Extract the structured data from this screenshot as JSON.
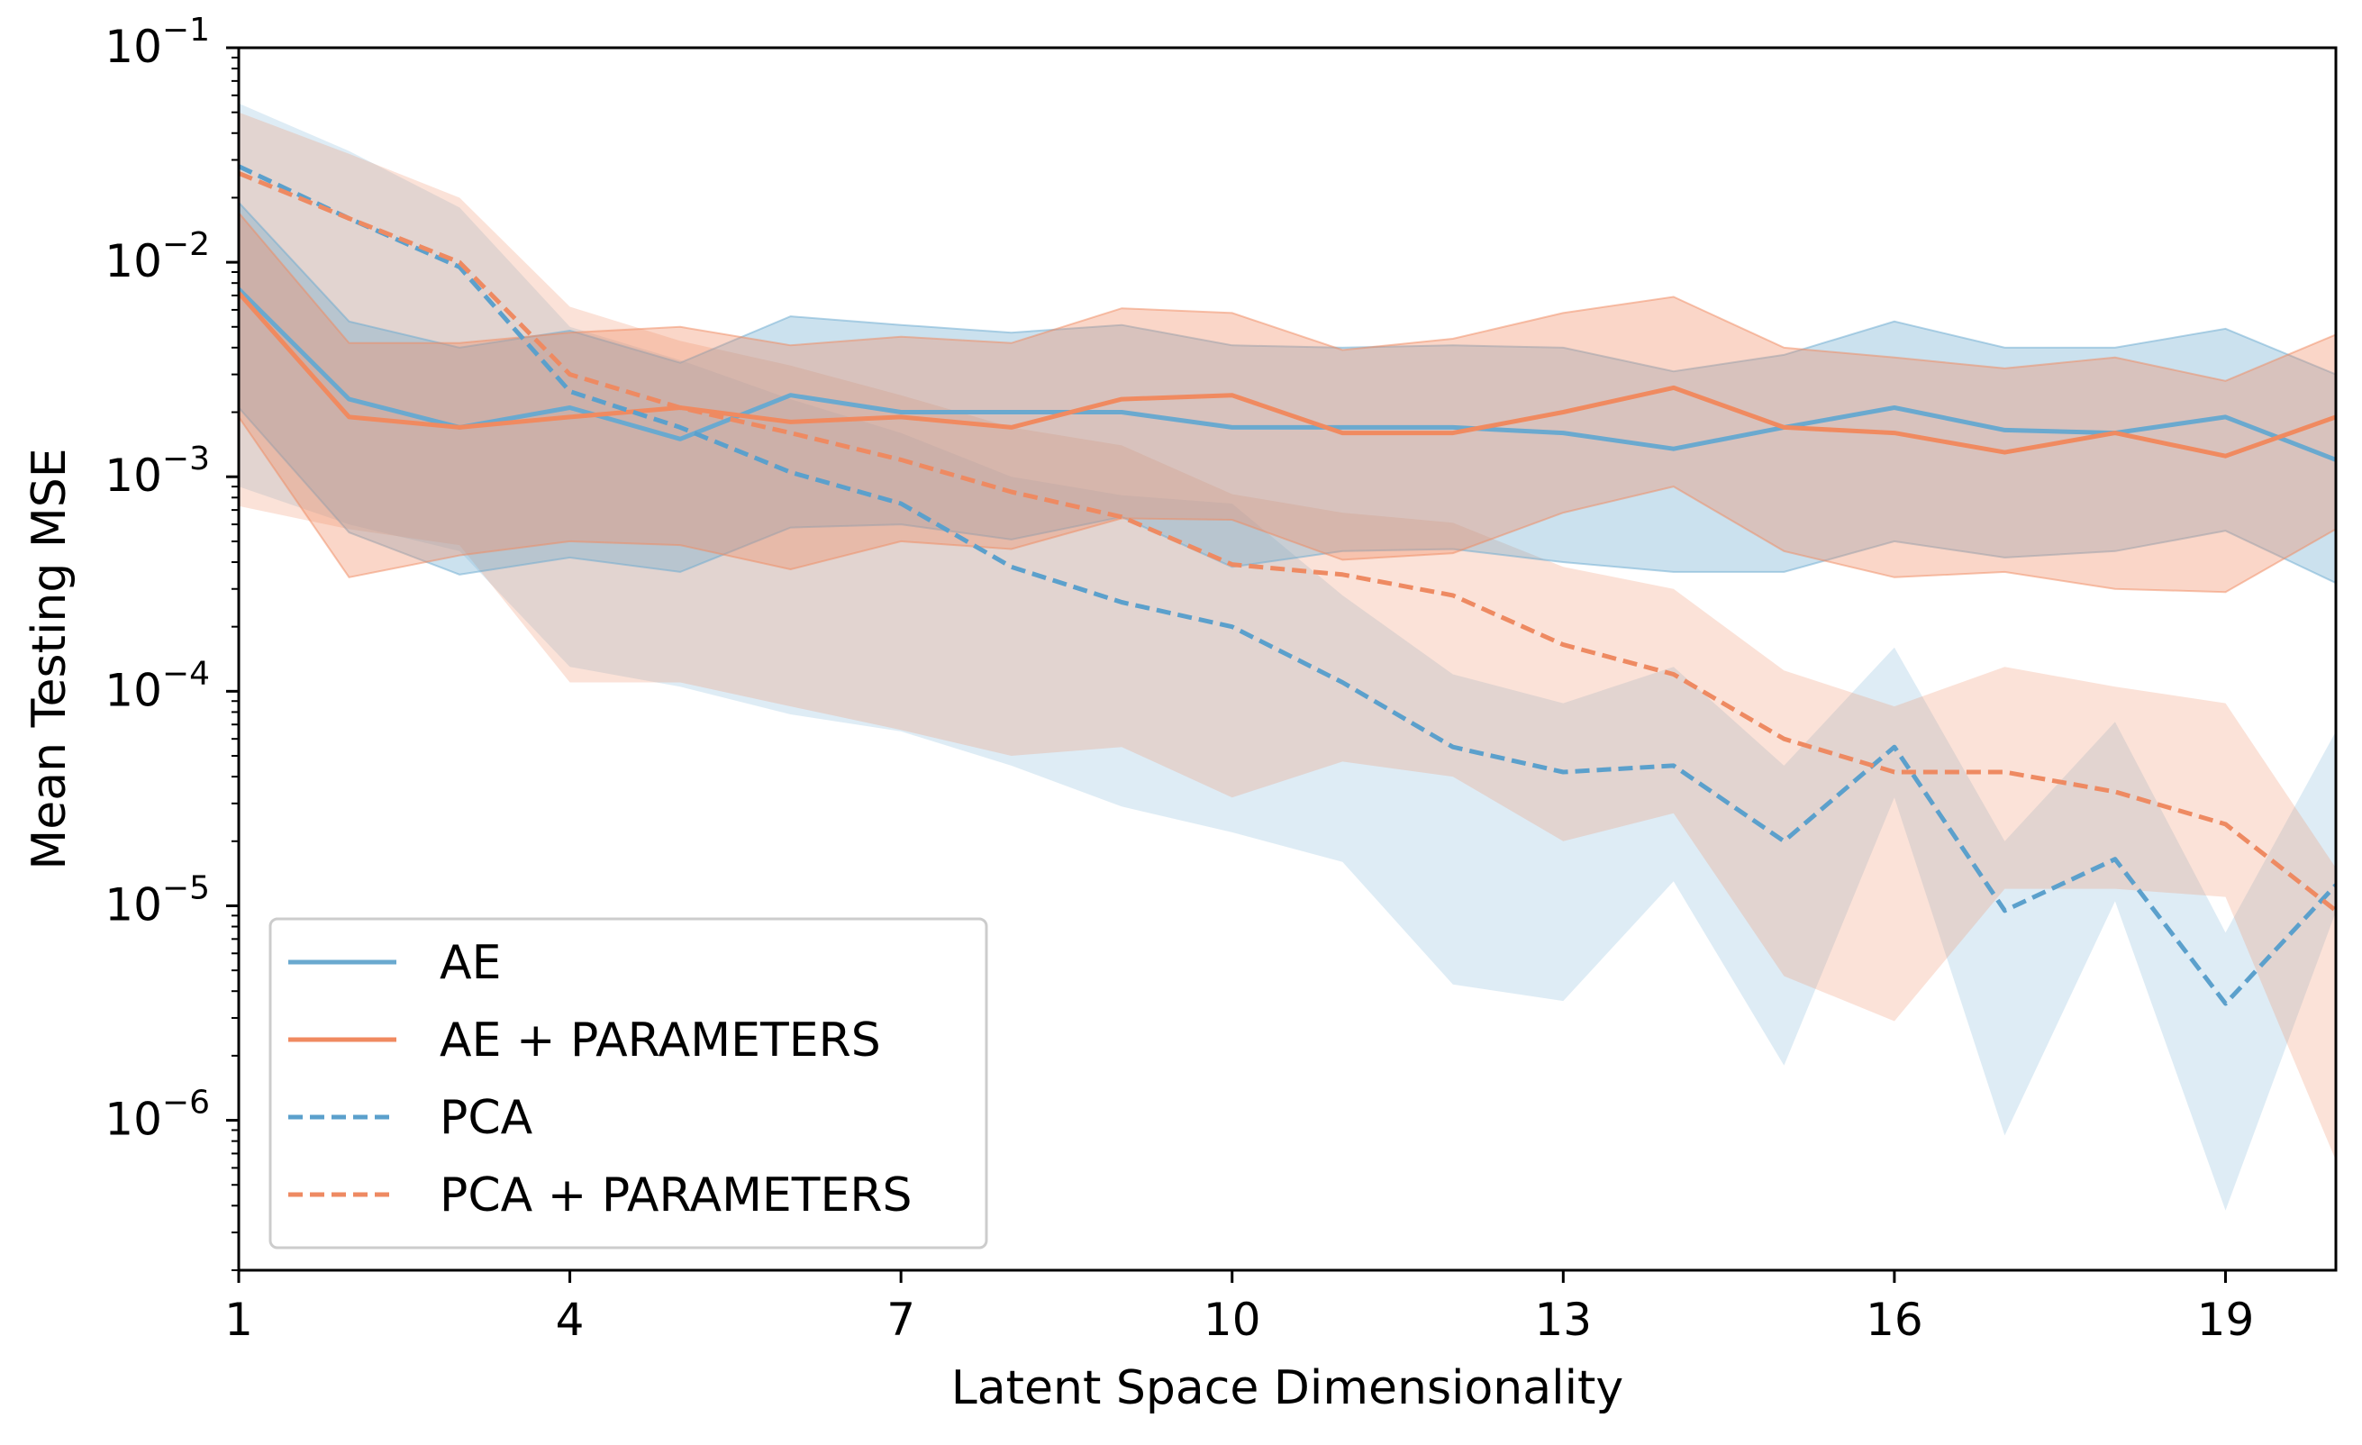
{
  "chart_data": {
    "type": "line",
    "title": "",
    "xlabel": "Latent Space Dimensionality",
    "ylabel": "Mean Testing MSE",
    "yscale": "log",
    "xlim": [
      1,
      20
    ],
    "ylim": [
      2e-07,
      0.1
    ],
    "xticks": [
      1,
      4,
      7,
      10,
      13,
      16,
      19
    ],
    "yticks": [
      {
        "base": "10",
        "exp": "−6",
        "value": 1e-06
      },
      {
        "base": "10",
        "exp": "−5",
        "value": 1e-05
      },
      {
        "base": "10",
        "exp": "−4",
        "value": 0.0001
      },
      {
        "base": "10",
        "exp": "−3",
        "value": 0.001
      },
      {
        "base": "10",
        "exp": "−2",
        "value": 0.01
      },
      {
        "base": "10",
        "exp": "−1",
        "value": 0.1
      }
    ],
    "grid": false,
    "legend_position": "lower-left",
    "x": [
      1,
      2,
      3,
      4,
      5,
      6,
      7,
      8,
      9,
      10,
      11,
      12,
      13,
      14,
      15,
      16,
      17,
      18,
      19,
      20
    ],
    "series": [
      {
        "name": "AE",
        "color": "#6aa9cf",
        "style": "solid",
        "values": [
          0.0075,
          0.0023,
          0.0017,
          0.0021,
          0.0015,
          0.0024,
          0.002,
          0.002,
          0.002,
          0.0017,
          0.0017,
          0.0017,
          0.0016,
          0.00135,
          0.0017,
          0.0021,
          0.00165,
          0.0016,
          0.0019,
          0.0012
        ],
        "upper": [
          0.019,
          0.0053,
          0.004,
          0.0048,
          0.0034,
          0.0056,
          0.0051,
          0.0047,
          0.0051,
          0.0041,
          0.004,
          0.0041,
          0.004,
          0.0031,
          0.0037,
          0.0053,
          0.004,
          0.004,
          0.0049,
          0.003
        ],
        "lower": [
          0.0021,
          0.00055,
          0.00035,
          0.00042,
          0.00036,
          0.00058,
          0.0006,
          0.00051,
          0.00065,
          0.00038,
          0.00045,
          0.00046,
          0.0004,
          0.00036,
          0.00036,
          0.0005,
          0.00042,
          0.00045,
          0.00056,
          0.00032
        ]
      },
      {
        "name": "AE + PARAMETERS",
        "color": "#f08a60",
        "style": "solid",
        "values": [
          0.0072,
          0.0019,
          0.0017,
          0.0019,
          0.0021,
          0.0018,
          0.0019,
          0.0017,
          0.0023,
          0.0024,
          0.0016,
          0.0016,
          0.002,
          0.0026,
          0.0017,
          0.0016,
          0.0013,
          0.0016,
          0.00125,
          0.0019
        ],
        "upper": [
          0.017,
          0.0042,
          0.0042,
          0.0047,
          0.005,
          0.0041,
          0.0045,
          0.0042,
          0.0061,
          0.0058,
          0.0039,
          0.0044,
          0.0058,
          0.0069,
          0.004,
          0.0036,
          0.0032,
          0.0036,
          0.0028,
          0.0046
        ],
        "lower": [
          0.0019,
          0.00034,
          0.00043,
          0.0005,
          0.00048,
          0.00037,
          0.0005,
          0.00046,
          0.00064,
          0.00063,
          0.00041,
          0.00044,
          0.00068,
          0.0009,
          0.00045,
          0.00034,
          0.00036,
          0.0003,
          0.00029,
          0.00057
        ]
      },
      {
        "name": "PCA",
        "color": "#5ba0cc",
        "style": "dashed",
        "values": [
          0.028,
          0.016,
          0.0095,
          0.0025,
          0.0017,
          0.00105,
          0.00075,
          0.00038,
          0.00026,
          0.0002,
          0.00011,
          5.5e-05,
          4.2e-05,
          4.5e-05,
          2e-05,
          5.5e-05,
          9.5e-06,
          1.65e-05,
          3.5e-06,
          1.25e-05
        ],
        "upper": [
          0.055,
          0.033,
          0.018,
          0.005,
          0.0035,
          0.0023,
          0.0016,
          0.001,
          0.00082,
          0.00075,
          0.00028,
          0.00012,
          8.8e-05,
          0.00013,
          4.5e-05,
          0.00016,
          2e-05,
          7.2e-05,
          7.5e-06,
          6.5e-05
        ],
        "lower": [
          0.0009,
          0.0006,
          0.00045,
          0.00013,
          0.000105,
          7.8e-05,
          6.5e-05,
          4.5e-05,
          2.9e-05,
          2.2e-05,
          1.6e-05,
          4.3e-06,
          3.6e-06,
          1.3e-05,
          1.8e-06,
          3.2e-05,
          8.5e-07,
          1.05e-05,
          3.8e-07,
          9.4e-06
        ]
      },
      {
        "name": "PCA + PARAMETERS",
        "color": "#ee8a62",
        "style": "dashed",
        "values": [
          0.026,
          0.016,
          0.01,
          0.003,
          0.0021,
          0.0016,
          0.0012,
          0.00085,
          0.00065,
          0.00039,
          0.00035,
          0.00028,
          0.000165,
          0.00012,
          6e-05,
          4.2e-05,
          4.2e-05,
          3.4e-05,
          2.4e-05,
          9.5e-06
        ],
        "upper": [
          0.05,
          0.032,
          0.02,
          0.0062,
          0.0043,
          0.0033,
          0.0024,
          0.0017,
          0.0014,
          0.00083,
          0.00068,
          0.00061,
          0.00038,
          0.0003,
          0.000125,
          8.5e-05,
          0.00013,
          0.000105,
          8.8e-05,
          1.5e-05
        ],
        "lower": [
          0.00073,
          0.00057,
          0.00048,
          0.00011,
          0.00011,
          8.5e-05,
          6.6e-05,
          5e-05,
          5.5e-05,
          3.2e-05,
          4.7e-05,
          4e-05,
          2e-05,
          2.7e-05,
          4.7e-06,
          2.9e-06,
          1.2e-05,
          1.2e-05,
          1.1e-05,
          6.5e-07
        ]
      }
    ]
  }
}
